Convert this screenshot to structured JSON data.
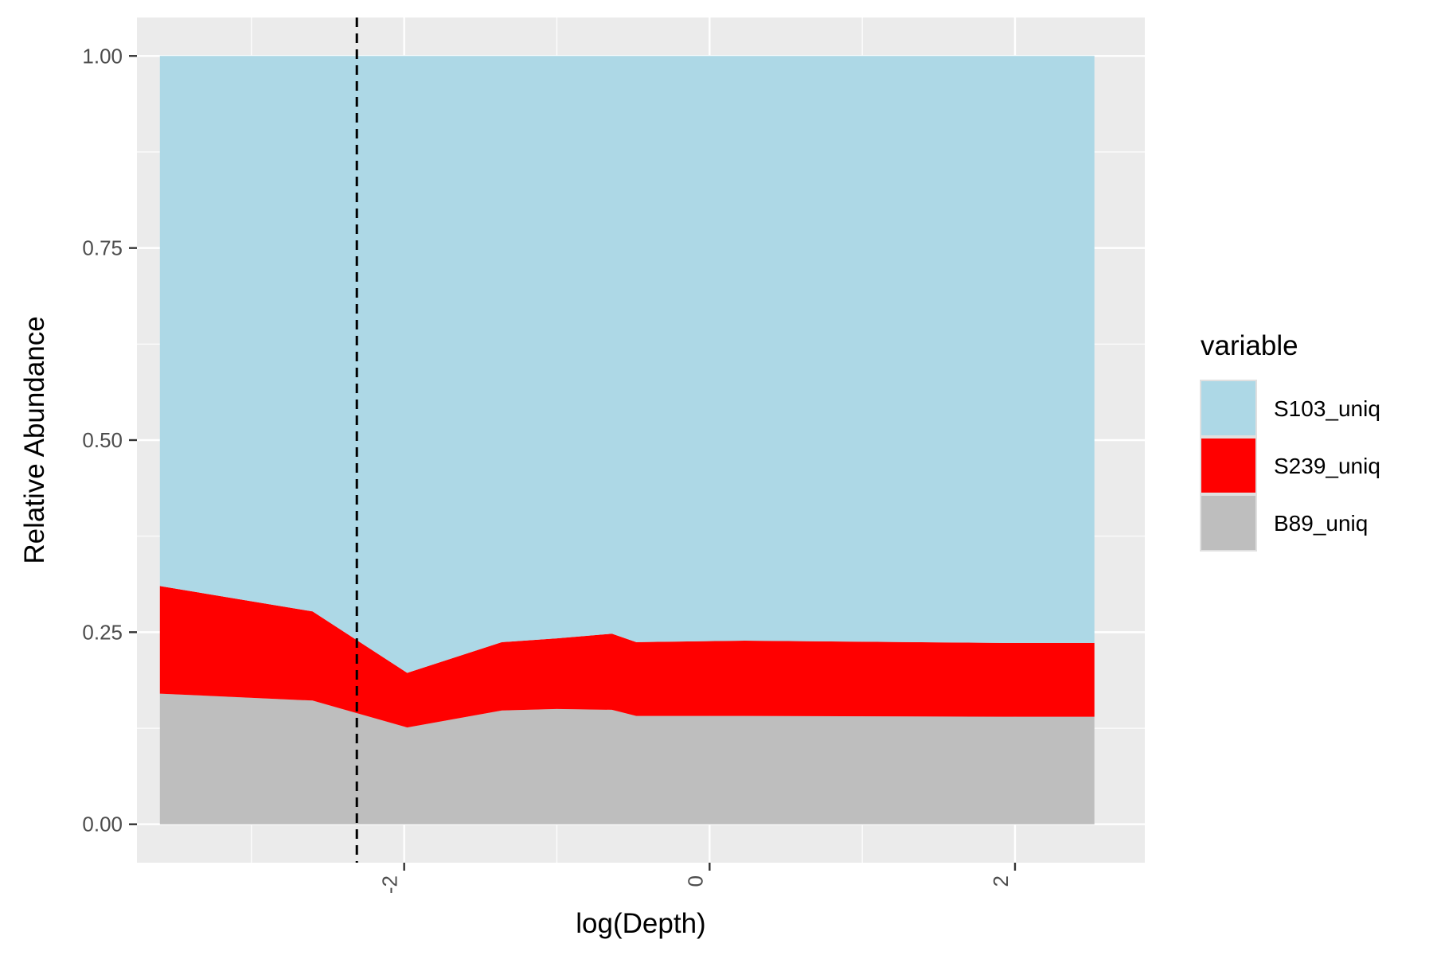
{
  "chart_data": {
    "type": "area",
    "stacked": true,
    "normalized": true,
    "xlabel": "log(Depth)",
    "ylabel": "Relative Abundance",
    "xlim": [
      -3.75,
      2.85
    ],
    "ylim": [
      -0.05,
      1.05
    ],
    "x_ticks": [
      -2,
      0,
      2
    ],
    "x_tick_labels": [
      "-2",
      "0",
      "2"
    ],
    "y_ticks": [
      0,
      0.25,
      0.5,
      0.75,
      1.0
    ],
    "y_tick_labels": [
      "0.00",
      "0.25",
      "0.50",
      "0.75",
      "1.00"
    ],
    "grid": true,
    "panel_background": "#ebebeb",
    "x_tick_label_rotation": "vertical",
    "reference_line": {
      "orientation": "vertical",
      "x": -2.31,
      "style": "dashed",
      "color": "#000000"
    },
    "legend": {
      "title": "variable",
      "position": "right"
    },
    "x": [
      -3.6,
      -2.6,
      -1.98,
      -1.36,
      -1.0,
      -0.64,
      -0.48,
      0.23,
      1.92,
      2.52
    ],
    "series": [
      {
        "name": "S103_uniq",
        "color": "#add8e6",
        "values": [
          0.69,
          0.723,
          0.803,
          0.763,
          0.758,
          0.752,
          0.763,
          0.761,
          0.764,
          0.764
        ]
      },
      {
        "name": "S239_uniq",
        "color": "#ff0000",
        "values": [
          0.14,
          0.116,
          0.071,
          0.089,
          0.092,
          0.099,
          0.096,
          0.098,
          0.096,
          0.096
        ]
      },
      {
        "name": "B89_uniq",
        "color": "#bebebe",
        "values": [
          0.17,
          0.161,
          0.126,
          0.148,
          0.15,
          0.149,
          0.141,
          0.141,
          0.14,
          0.14
        ]
      }
    ]
  }
}
